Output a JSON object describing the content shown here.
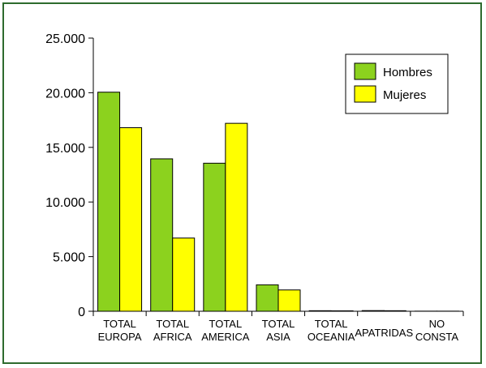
{
  "chart_data": {
    "type": "bar",
    "categories": [
      [
        "TOTAL",
        "EUROPA"
      ],
      [
        "TOTAL",
        "AFRICA"
      ],
      [
        "TOTAL",
        "AMERICA"
      ],
      [
        "TOTAL",
        "ASIA"
      ],
      [
        "TOTAL",
        "OCEANIA"
      ],
      [
        "APATRIDAS"
      ],
      [
        "NO",
        "CONSTA"
      ]
    ],
    "series": [
      {
        "name": "Hombres",
        "color": "#8cd21e",
        "values": [
          20050,
          13950,
          13550,
          2420,
          50,
          60,
          10
        ]
      },
      {
        "name": "Mujeres",
        "color": "#ffff00",
        "values": [
          16800,
          6700,
          17200,
          1950,
          40,
          50,
          10
        ]
      }
    ],
    "ylim": [
      0,
      25000
    ],
    "yticks": [
      0,
      5000,
      10000,
      15000,
      20000,
      25000
    ],
    "ytick_labels": [
      "0",
      "5.000",
      "10.000",
      "15.000",
      "20.000",
      "25.000"
    ],
    "legend_position": "top-right",
    "grid": false
  }
}
